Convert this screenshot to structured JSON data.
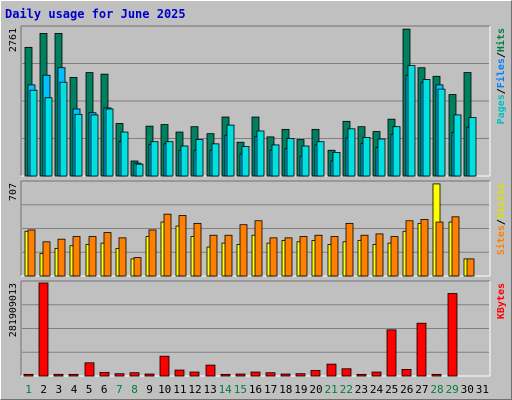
{
  "chart_data": {
    "type": "bar",
    "title": "Daily usage for June 2025",
    "days": [
      "1",
      "2",
      "3",
      "4",
      "5",
      "6",
      "7",
      "8",
      "9",
      "10",
      "11",
      "12",
      "13",
      "14",
      "15",
      "16",
      "17",
      "18",
      "19",
      "20",
      "21",
      "22",
      "23",
      "24",
      "25",
      "26",
      "27",
      "28",
      "29",
      "30",
      "31"
    ],
    "weekend_days": [
      "1",
      "7",
      "8",
      "14",
      "15",
      "21",
      "22",
      "28",
      "29"
    ],
    "panels": [
      {
        "max_label": "2761",
        "ymax": 2761,
        "right_label": [
          "Pages",
          "/",
          "Files",
          "/",
          "Hits"
        ],
        "right_label_colors": [
          "#00c0c0",
          "#000000",
          "#0080ff",
          "#000000",
          "#008040"
        ],
        "series": [
          {
            "name": "Hits",
            "color": "#008060",
            "values": [
              2400,
              2660,
              2660,
              1840,
              1930,
              1900,
              980,
              280,
              930,
              960,
              820,
              920,
              790,
              1100,
              630,
              1100,
              730,
              870,
              680,
              870,
              480,
              1020,
              920,
              830,
              1060,
              2740,
              2020,
              1860,
              1520,
              1930,
              0
            ]
          },
          {
            "name": "Files",
            "color": "#00c0ff",
            "values": [
              1700,
              1880,
              2020,
              1250,
              1180,
              1270,
              640,
              240,
              590,
              600,
              480,
              480,
              480,
              760,
              410,
              740,
              480,
              510,
              370,
              580,
              280,
              710,
              610,
              530,
              780,
              1880,
              1740,
              1700,
              810,
              910,
              0
            ]
          },
          {
            "name": "Pages",
            "color": "#00e0e0",
            "values": [
              1600,
              1460,
              1750,
              1150,
              1140,
              1250,
              820,
              220,
              640,
              640,
              560,
              680,
              600,
              950,
              550,
              840,
              580,
              700,
              560,
              640,
              440,
              880,
              720,
              690,
              920,
              2060,
              1800,
              1620,
              1140,
              1090,
              0
            ]
          }
        ]
      },
      {
        "max_label": "707",
        "ymax": 707,
        "right_label": [
          "Sites",
          "/",
          "Visits"
        ],
        "right_label_colors": [
          "#ff8000",
          "#000000",
          "#e0e000"
        ],
        "series": [
          {
            "name": "Visits",
            "color": "#ffff00",
            "values": [
              340,
              170,
              210,
              230,
              240,
              250,
              210,
              130,
              300,
              410,
              380,
              300,
              220,
              250,
              240,
              310,
              250,
              270,
              260,
              270,
              240,
              260,
              270,
              240,
              250,
              340,
              400,
              700,
              410,
              130,
              0
            ]
          },
          {
            "name": "Sites",
            "color": "#ff8000",
            "values": [
              350,
              260,
              280,
              300,
              300,
              330,
              290,
              140,
              350,
              470,
              460,
              400,
              310,
              310,
              390,
              420,
              290,
              290,
              300,
              310,
              300,
              400,
              310,
              320,
              300,
              420,
              430,
              410,
              450,
              130,
              0
            ]
          }
        ]
      },
      {
        "max_label": "281909013",
        "ymax": 281909013,
        "right_label": [
          "KBytes"
        ],
        "right_label_colors": [
          "#ff0000"
        ],
        "series": [
          {
            "name": "KBytes",
            "color": "#ff0000",
            "values": [
              5000000,
              281909013,
              5000000,
              5000000,
              40000000,
              11000000,
              7000000,
              10000000,
              6000000,
              60000000,
              18000000,
              12000000,
              33000000,
              5000000,
              6000000,
              12000000,
              10000000,
              6000000,
              7000000,
              17000000,
              36000000,
              22000000,
              5000000,
              12000000,
              140000000,
              20000000,
              160000000,
              5000000,
              250000000,
              0,
              0
            ]
          }
        ]
      }
    ]
  }
}
